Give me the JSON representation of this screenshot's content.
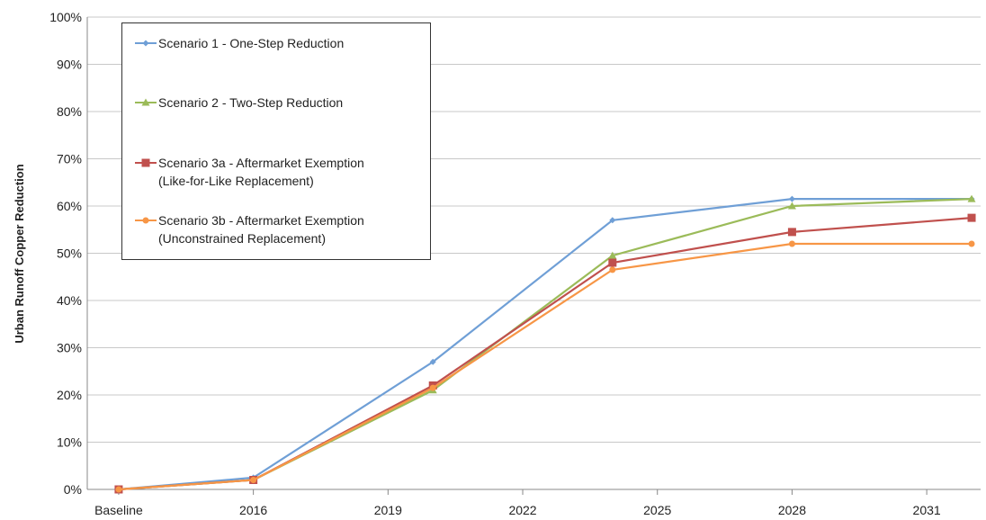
{
  "chart_data": {
    "type": "line",
    "y_label": "Urban Runoff Copper Reduction",
    "x": [
      2013,
      2016,
      2020,
      2024,
      2028,
      2032
    ],
    "xlim": [
      2012.3,
      2032.2
    ],
    "xticks": [
      {
        "value": 2013,
        "label": "Baseline"
      },
      2016,
      2019,
      2022,
      2025,
      2028,
      2031
    ],
    "ylim": [
      0,
      100
    ],
    "yticks": [
      {
        "value": 0,
        "label": "0%"
      },
      {
        "value": 10,
        "label": "10%"
      },
      {
        "value": 20,
        "label": "20%"
      },
      {
        "value": 30,
        "label": "30%"
      },
      {
        "value": 40,
        "label": "40%"
      },
      {
        "value": 50,
        "label": "50%"
      },
      {
        "value": 60,
        "label": "60%"
      },
      {
        "value": 70,
        "label": "70%"
      },
      {
        "value": 80,
        "label": "80%"
      },
      {
        "value": 90,
        "label": "90%"
      },
      {
        "value": 100,
        "label": "100%"
      }
    ],
    "grid": true,
    "legend": "upper left",
    "series": [
      {
        "name": "Scenario 1 - One-Step Reduction",
        "color": "#6f9fd6",
        "marker": "diamond",
        "values": [
          0,
          2.5,
          27,
          57,
          61.5,
          61.5
        ]
      },
      {
        "name": "Scenario 2 - Two-Step Reduction",
        "color": "#9bbb59",
        "marker": "triangle",
        "values": [
          0,
          2,
          21,
          49.5,
          60,
          61.5
        ]
      },
      {
        "name": "Scenario 3a - Aftermarket Exemption\n(Like-for-Like Replacement)",
        "color": "#c0504d",
        "marker": "square",
        "values": [
          0,
          2,
          22,
          48,
          54.5,
          57.5
        ]
      },
      {
        "name": "Scenario 3b - Aftermarket Exemption\n(Unconstrained Replacement)",
        "color": "#f79646",
        "marker": "circle",
        "values": [
          0,
          2,
          21.5,
          46.5,
          52,
          52
        ]
      }
    ]
  }
}
